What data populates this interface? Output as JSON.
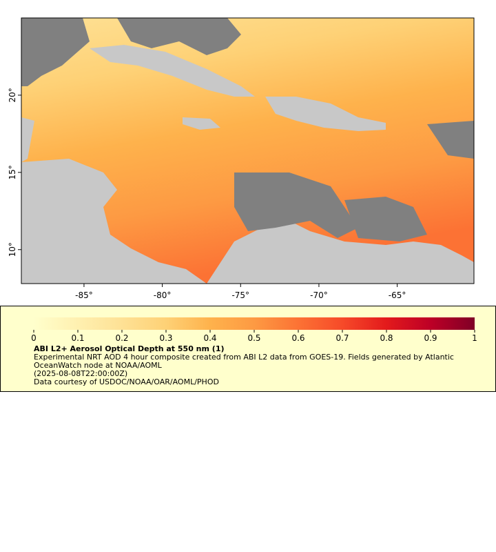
{
  "map": {
    "xlim": [
      -89,
      -60.1
    ],
    "ylim": [
      7.8,
      25
    ],
    "xticks": [
      {
        "value": -85,
        "label": "-85°"
      },
      {
        "value": -80,
        "label": "-80°"
      },
      {
        "value": -75,
        "label": "-75°"
      },
      {
        "value": -70,
        "label": "-70°"
      },
      {
        "value": -65,
        "label": "-65°"
      }
    ],
    "yticks": [
      {
        "value": 10,
        "label": "10°"
      },
      {
        "value": 15,
        "label": "15°"
      },
      {
        "value": 20,
        "label": "20°"
      }
    ],
    "land_color": "#c8c8c8",
    "nodata_color": "#808080"
  },
  "colorbar": {
    "lim": [
      0,
      1
    ],
    "ticks": [
      0,
      0.1,
      0.2,
      0.3,
      0.4,
      0.5,
      0.6,
      0.7,
      0.8,
      0.9,
      1
    ],
    "colors": [
      "#ffffcc",
      "#fff0b0",
      "#fee195",
      "#fed176",
      "#feb24c",
      "#fd9a43",
      "#fc7234",
      "#f64a29",
      "#e31a1c",
      "#bd0026",
      "#800026"
    ]
  },
  "legend": {
    "title": "ABI L2+ Aerosol Optical Depth at 550 nm (1)",
    "description": "Experimental NRT AOD 4 hour composite created from ABI L2 data from GOES-19. Fields generated by Atlantic OceanWatch node at NOAA/AOML",
    "time": "(2025-08-08T22:00:00Z)",
    "credit": "Data courtesy of USDOC/NOAA/OAR/AOML/PHOD"
  }
}
